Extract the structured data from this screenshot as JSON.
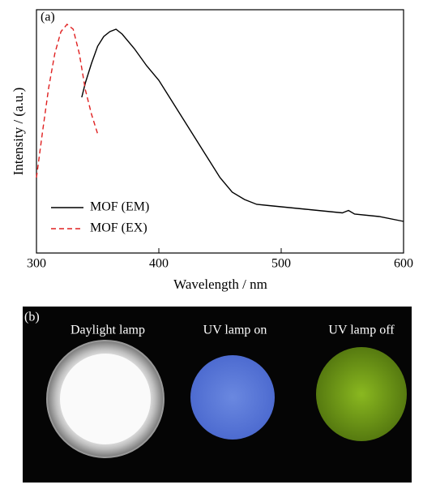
{
  "chart_data": {
    "type": "line",
    "annotation": "(a)",
    "x_label": "Wavelength / nm",
    "y_label": "Intensity / (a.u.)",
    "xlim": [
      300,
      600
    ],
    "xticks": [
      300,
      400,
      500,
      600
    ],
    "ylim": [
      0,
      100
    ],
    "legend": "lower left",
    "series": [
      {
        "name": "MOF (EM)",
        "color": "#000000",
        "style": "solid",
        "x": [
          337,
          340,
          345,
          350,
          355,
          360,
          365,
          370,
          380,
          390,
          400,
          410,
          420,
          430,
          440,
          450,
          460,
          470,
          480,
          490,
          500,
          520,
          540,
          550,
          555,
          560,
          580,
          600
        ],
        "values": [
          64,
          70,
          78,
          85,
          89,
          91,
          92,
          90,
          84,
          77,
          71,
          63,
          55,
          47,
          39,
          31,
          25,
          22,
          20,
          19.5,
          19,
          18,
          17,
          16.5,
          17.5,
          16,
          15,
          13
        ]
      },
      {
        "name": "MOF (EX)",
        "color": "#e02020",
        "style": "dashed",
        "x": [
          300,
          305,
          310,
          315,
          320,
          325,
          330,
          335,
          340,
          345,
          350
        ],
        "values": [
          31,
          50,
          68,
          82,
          91,
          94,
          92,
          82,
          67,
          57,
          49
        ]
      }
    ]
  },
  "photo_panel": {
    "label": "(b)",
    "captions": [
      "Daylight lamp",
      "UV lamp on",
      "UV lamp off"
    ]
  }
}
